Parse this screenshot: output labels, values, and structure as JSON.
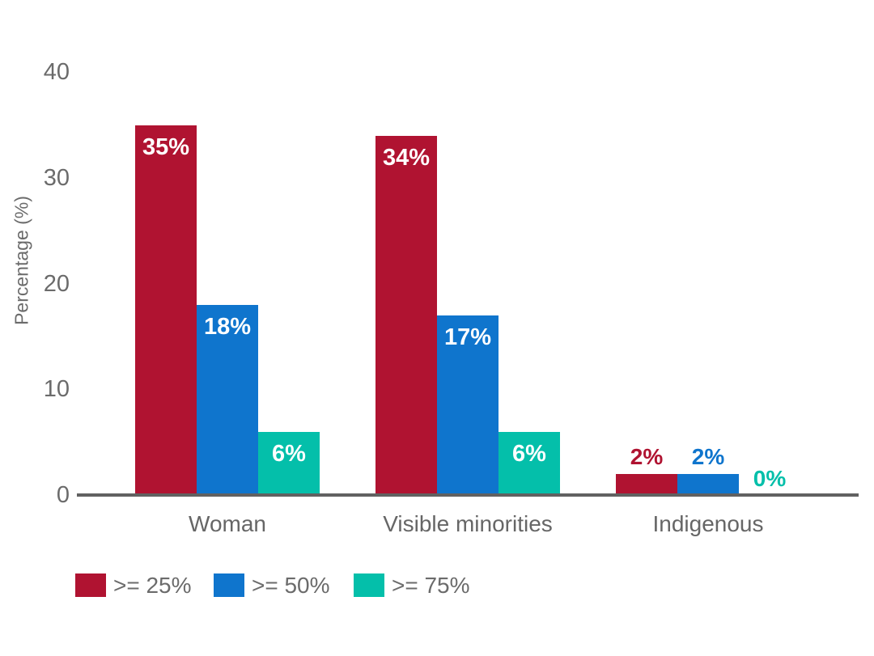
{
  "chart_data": {
    "type": "bar",
    "title": "",
    "categories": [
      "Woman",
      "Visible minorities",
      "Indigenous"
    ],
    "series": [
      {
        "name": ">= 25%",
        "color": "#b01331",
        "values": [
          35,
          34,
          2
        ]
      },
      {
        "name": ">= 50%",
        "color": "#0f75cd",
        "values": [
          18,
          17,
          2
        ]
      },
      {
        "name": ">= 75%",
        "color": "#04bfaa",
        "values": [
          6,
          6,
          0
        ]
      }
    ],
    "bar_labels": [
      [
        "35%",
        "34%",
        "2%"
      ],
      [
        "18%",
        "17%",
        "2%"
      ],
      [
        "6%",
        "6%",
        "0%"
      ]
    ],
    "ylabel": "Percentage (%)",
    "yticks": [
      "0",
      "10",
      "20",
      "30",
      "40"
    ],
    "ytick_values": [
      0,
      10,
      20,
      30,
      40
    ],
    "ylim": [
      0,
      40
    ],
    "grid": false,
    "legend_position": "bottom-left",
    "inside_label_color": "#ffffff",
    "axis_color": "#616161",
    "text_color": "#6b6b6b"
  }
}
